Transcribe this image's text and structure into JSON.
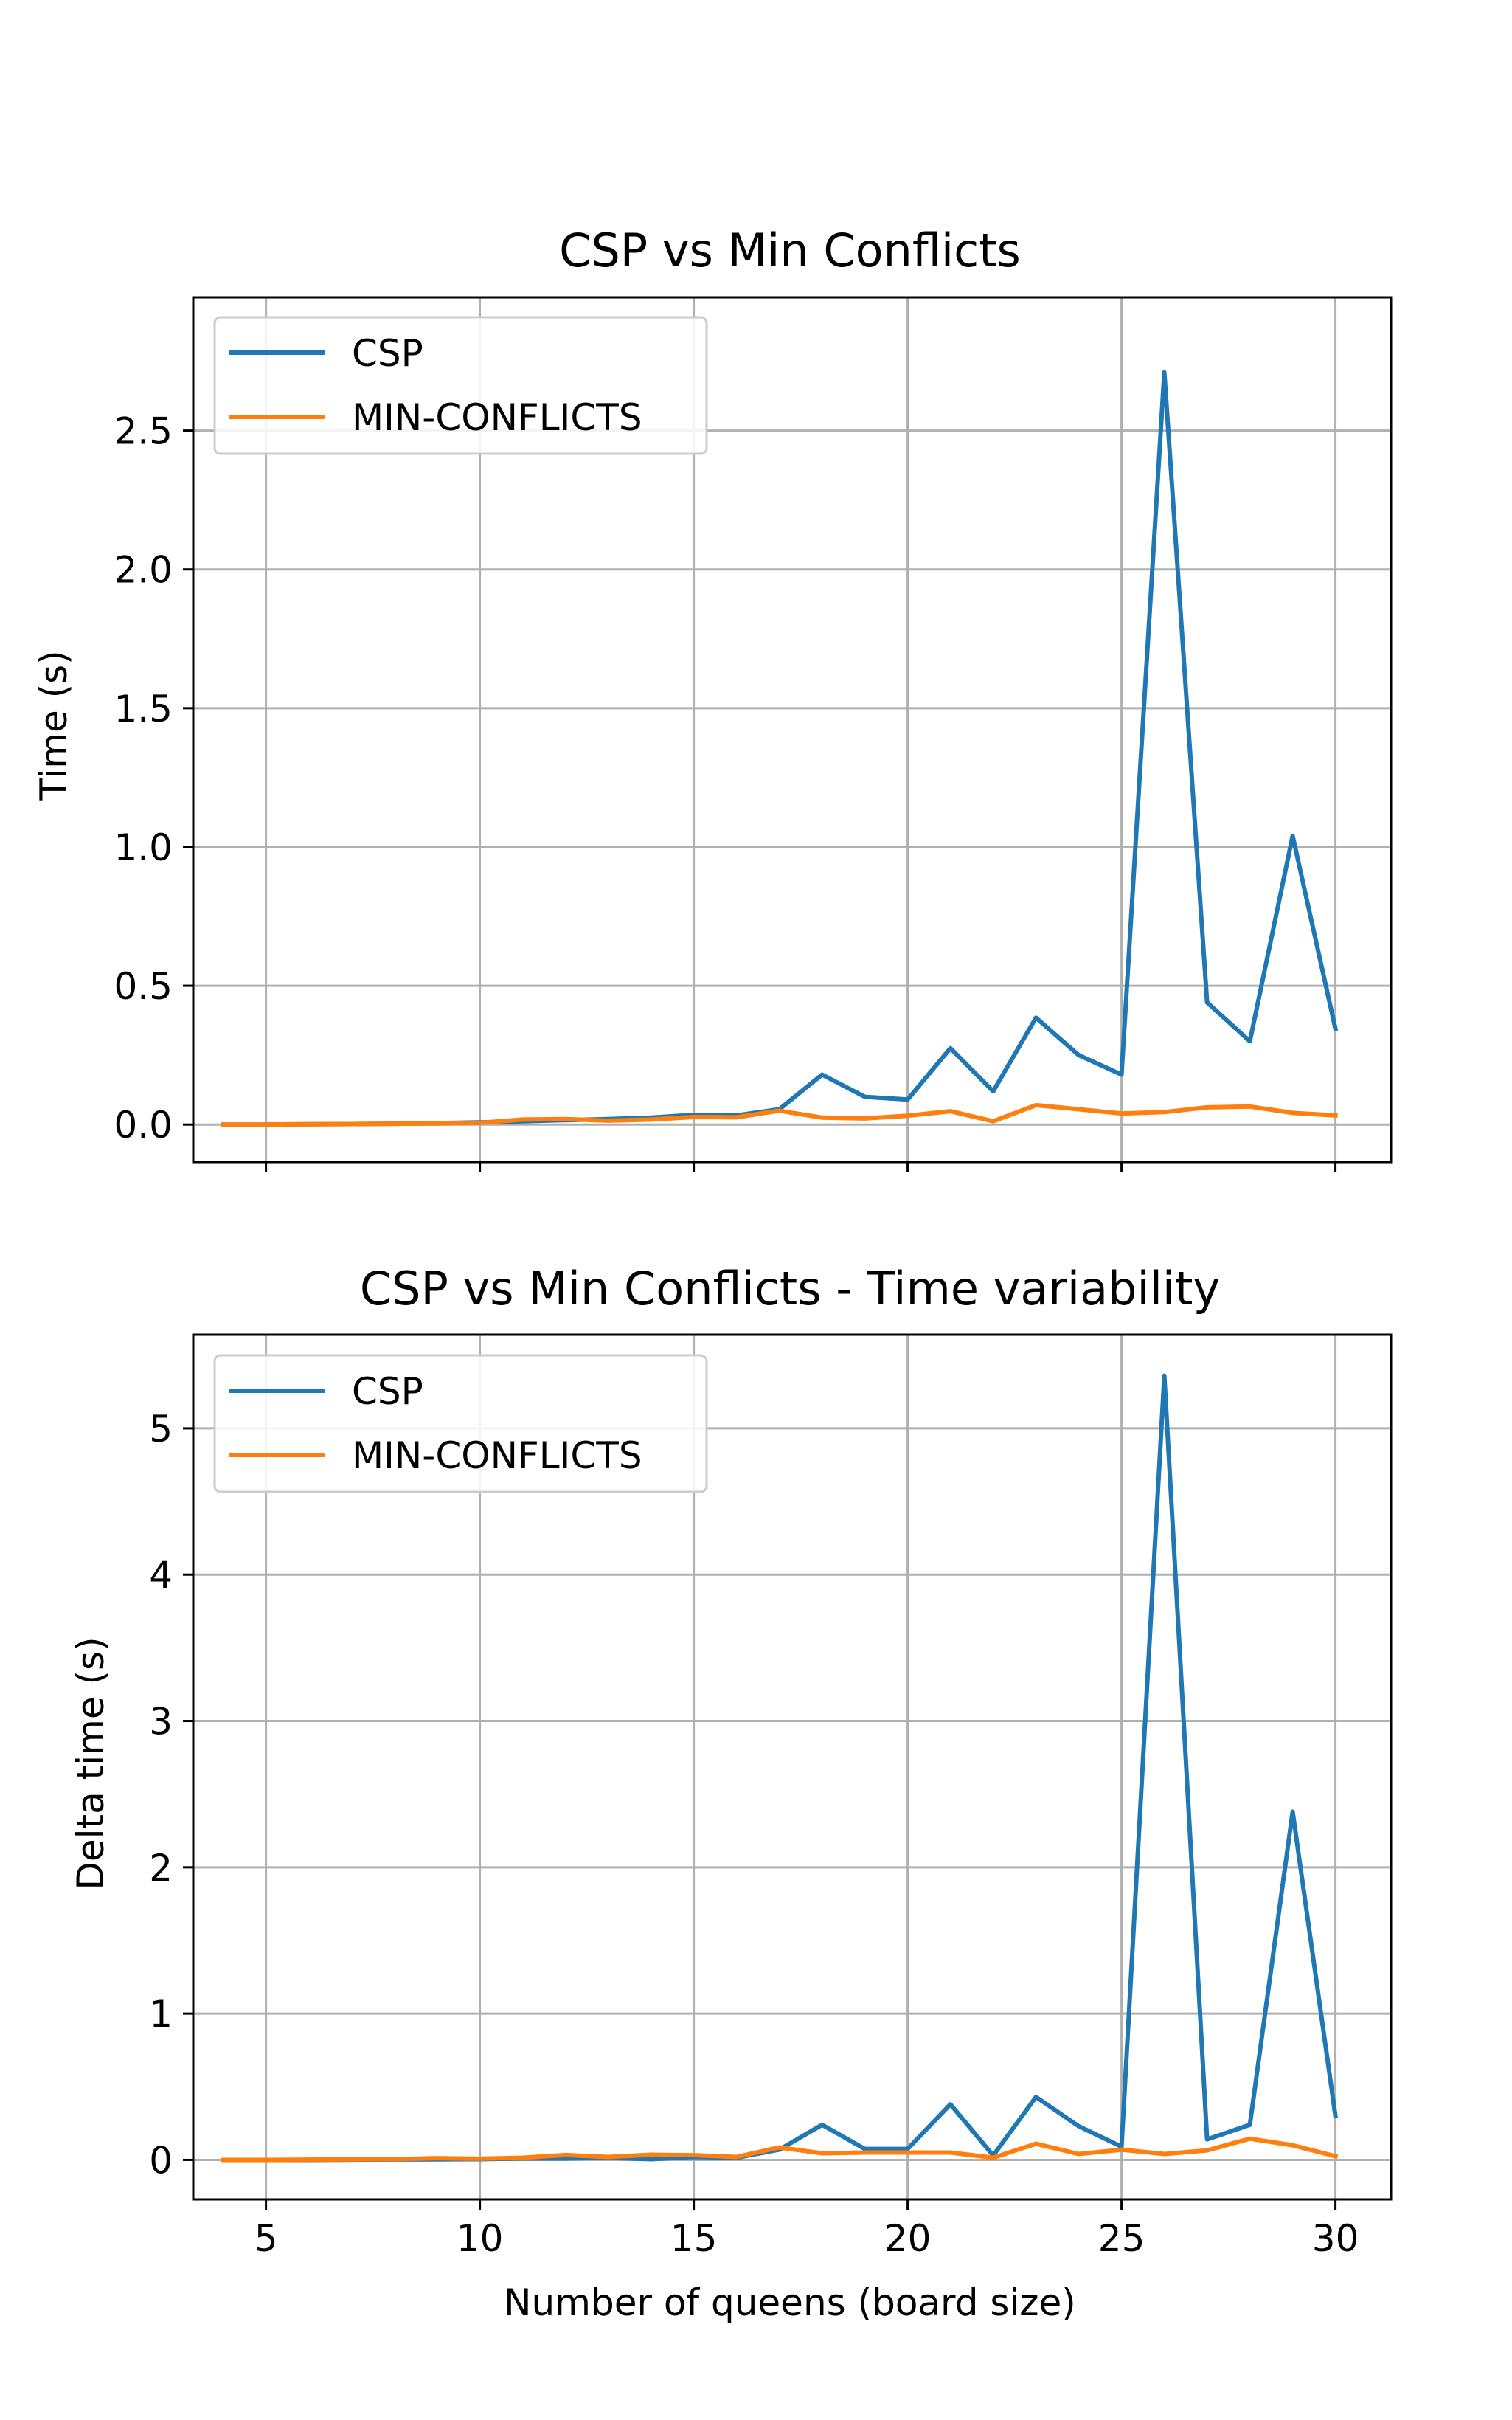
{
  "chart_data": [
    {
      "type": "line",
      "title": "CSP vs Min Conflicts",
      "xlabel": "",
      "ylabel": "Time (s)",
      "xlim": [
        3.3,
        31.3
      ],
      "ylim": [
        -0.135,
        2.98
      ],
      "xticks": [
        5,
        10,
        15,
        20,
        25,
        30
      ],
      "xtick_labels_visible": false,
      "yticks": [
        0.0,
        0.5,
        1.0,
        1.5,
        2.0,
        2.5
      ],
      "ytick_labels": [
        "0.0",
        "0.5",
        "1.0",
        "1.5",
        "2.0",
        "2.5"
      ],
      "grid": true,
      "legend": "upper-left",
      "x": [
        4,
        5,
        6,
        7,
        8,
        9,
        10,
        11,
        12,
        13,
        14,
        15,
        16,
        17,
        18,
        19,
        20,
        21,
        22,
        23,
        24,
        25,
        26,
        27,
        28,
        29,
        30
      ],
      "series": [
        {
          "name": "CSP",
          "color": "#1f77b4",
          "values": [
            0.0,
            0.0,
            0.001,
            0.002,
            0.003,
            0.005,
            0.008,
            0.012,
            0.016,
            0.02,
            0.025,
            0.035,
            0.033,
            0.055,
            0.18,
            0.1,
            0.09,
            0.275,
            0.12,
            0.385,
            0.25,
            0.18,
            2.71,
            0.44,
            0.3,
            1.04,
            0.345
          ]
        },
        {
          "name": "MIN-CONFLICTS",
          "color": "#ff7f0e",
          "values": [
            0.0,
            0.0,
            0.001,
            0.002,
            0.003,
            0.004,
            0.006,
            0.018,
            0.02,
            0.014,
            0.018,
            0.027,
            0.026,
            0.05,
            0.025,
            0.022,
            0.032,
            0.048,
            0.012,
            0.07,
            0.055,
            0.04,
            0.045,
            0.062,
            0.065,
            0.042,
            0.033
          ]
        }
      ]
    },
    {
      "type": "line",
      "title": "CSP vs Min Conflicts - Time variability",
      "xlabel": "Number of queens (board size)",
      "ylabel": "Delta time (s)",
      "xlim": [
        3.3,
        31.3
      ],
      "ylim": [
        -0.27,
        5.64
      ],
      "xticks": [
        5,
        10,
        15,
        20,
        25,
        30
      ],
      "xtick_labels": [
        "5",
        "10",
        "15",
        "20",
        "25",
        "30"
      ],
      "yticks": [
        0,
        1,
        2,
        3,
        4,
        5
      ],
      "ytick_labels": [
        "0",
        "1",
        "2",
        "3",
        "4",
        "5"
      ],
      "grid": true,
      "legend": "upper-left",
      "x": [
        4,
        5,
        6,
        7,
        8,
        9,
        10,
        11,
        12,
        13,
        14,
        15,
        16,
        17,
        18,
        19,
        20,
        21,
        22,
        23,
        24,
        25,
        26,
        27,
        28,
        29,
        30
      ],
      "series": [
        {
          "name": "CSP",
          "color": "#1f77b4",
          "values": [
            0.0,
            0.0,
            0.0,
            0.002,
            0.003,
            0.004,
            0.005,
            0.01,
            0.01,
            0.015,
            0.005,
            0.02,
            0.015,
            0.07,
            0.24,
            0.075,
            0.075,
            0.38,
            0.03,
            0.43,
            0.23,
            0.09,
            5.36,
            0.14,
            0.24,
            2.38,
            0.3
          ]
        },
        {
          "name": "MIN-CONFLICTS",
          "color": "#ff7f0e",
          "values": [
            0.0,
            0.0,
            0.002,
            0.004,
            0.005,
            0.012,
            0.008,
            0.015,
            0.033,
            0.02,
            0.035,
            0.032,
            0.02,
            0.085,
            0.045,
            0.05,
            0.05,
            0.05,
            0.015,
            0.11,
            0.04,
            0.07,
            0.04,
            0.065,
            0.145,
            0.1,
            0.025
          ]
        }
      ]
    }
  ]
}
